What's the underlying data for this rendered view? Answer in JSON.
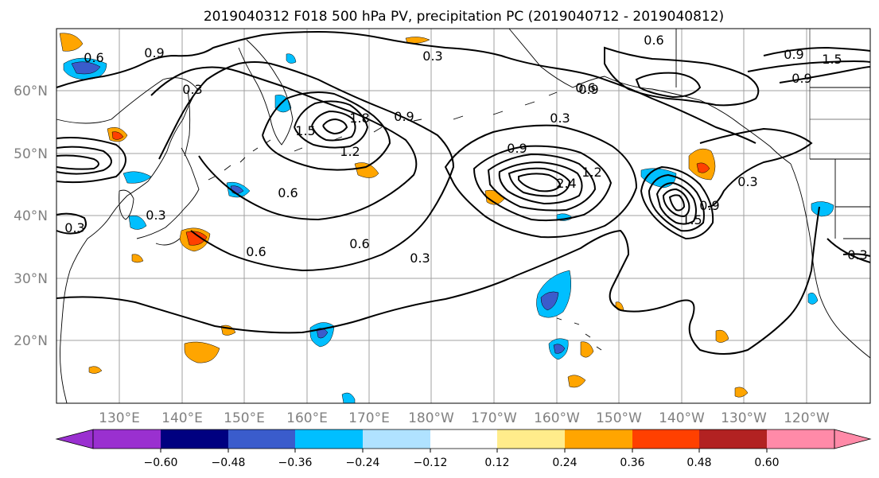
{
  "title": "2019040312 F018 500 hPa PV, precipitation PC (2019040712 - 2019040812)",
  "map": {
    "lon_labels": [
      "130°E",
      "140°E",
      "150°E",
      "160°E",
      "170°E",
      "180°W",
      "170°W",
      "160°W",
      "150°W",
      "140°W",
      "130°W",
      "120°W"
    ],
    "lat_labels": [
      "60°N",
      "50°N",
      "40°N",
      "30°N",
      "20°N"
    ],
    "contour_labels": [
      "0.9",
      "0.6",
      "0.3",
      "0.3",
      "1.8",
      "1.5",
      "1.2",
      "0.6",
      "0.9",
      "0.6",
      "0.3",
      "0.9",
      "2.4",
      "1.2",
      "0.6",
      "0.9",
      "0.3",
      "1.5",
      "0.6",
      "0.9",
      "0.3",
      "0.9",
      "1.5",
      "0.3",
      "0.3",
      "0.6",
      "0.9",
      "0.3"
    ],
    "colors": {
      "land_outline": "#000000",
      "grid": "#a0a0a0",
      "contour": "#000000"
    }
  },
  "colorbar": {
    "ticks": [
      "−0.60",
      "−0.48",
      "−0.36",
      "−0.24",
      "−0.12",
      "0.12",
      "0.24",
      "0.36",
      "0.48",
      "0.60"
    ],
    "colors": [
      "#9a30d0",
      "#000080",
      "#3a5ccc",
      "#00bfff",
      "#b0e2ff",
      "#ffffff",
      "#ffec8b",
      "#ffa500",
      "#ff4000",
      "#b22222",
      "#ff8aa8"
    ]
  }
}
